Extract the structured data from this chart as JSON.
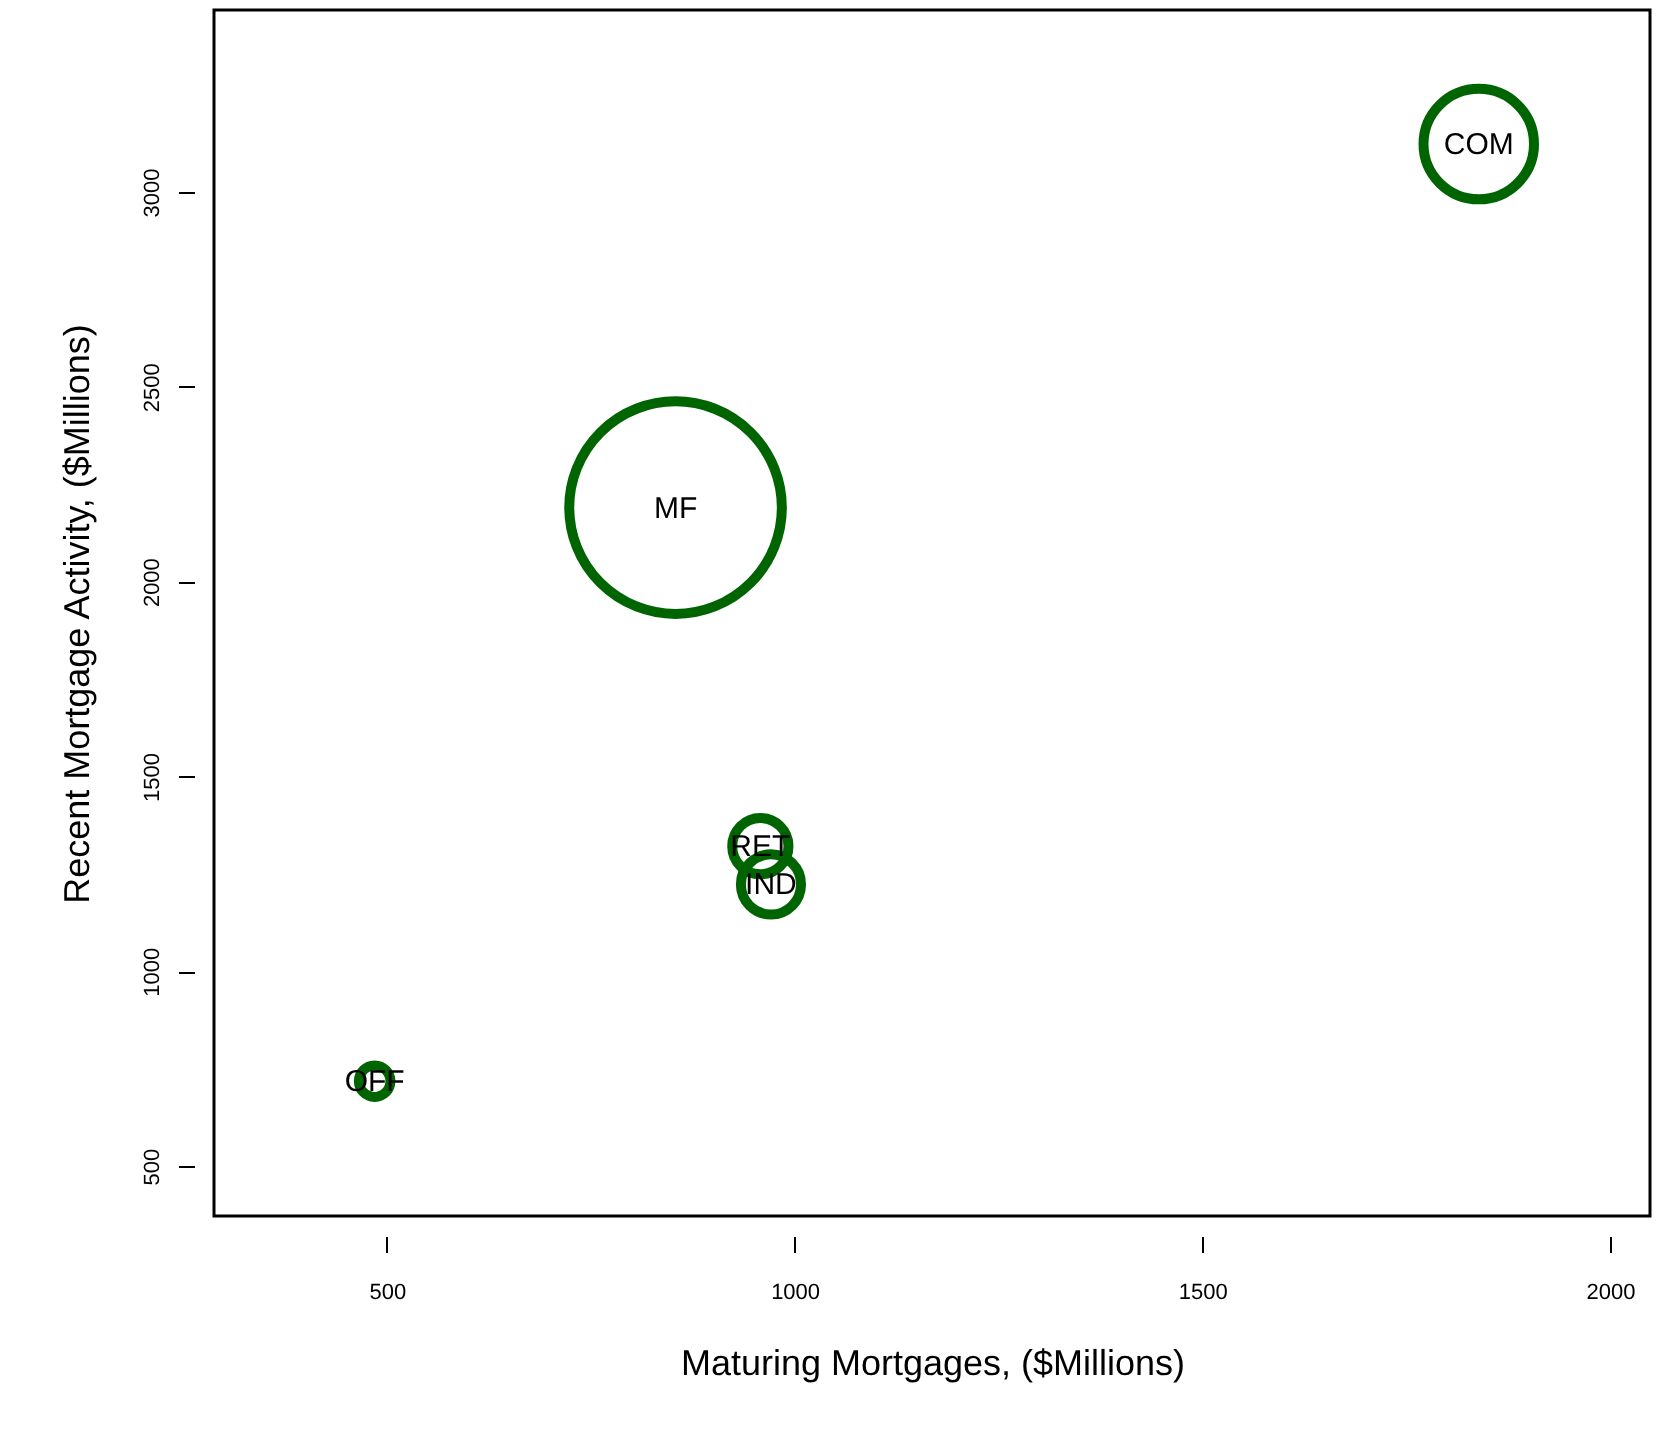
{
  "chart_data": {
    "type": "bubble",
    "xlabel": "Maturing Mortgages, ($Millions)",
    "ylabel": "Recent Mortgage Activity, ($Millions)",
    "x": [
      1839,
      854,
      958,
      971,
      485
    ],
    "series": [
      {
        "color": "#006400",
        "values": [
          3123,
          2190,
          1321,
          1223,
          718
        ],
        "sizes": [
          0.27,
          1,
          0.07,
          0.08,
          0.022
        ]
      }
    ],
    "annotations": [
      {
        "text": "COM",
        "x": 1839,
        "y": 3123
      },
      {
        "text": "MF",
        "x": 854,
        "y": 2190
      },
      {
        "text": "RET",
        "x": 958,
        "y": 1321
      },
      {
        "text": "IND",
        "x": 971,
        "y": 1223
      },
      {
        "text": "OFF",
        "x": 485,
        "y": 718
      }
    ],
    "xlim": [
      288,
      2049
    ],
    "ylim": [
      372,
      3467
    ],
    "xticks": [
      500,
      1000,
      1500,
      2000
    ],
    "yticks": [
      500,
      1000,
      1500,
      2000,
      2500,
      3000
    ],
    "grid": false
  }
}
